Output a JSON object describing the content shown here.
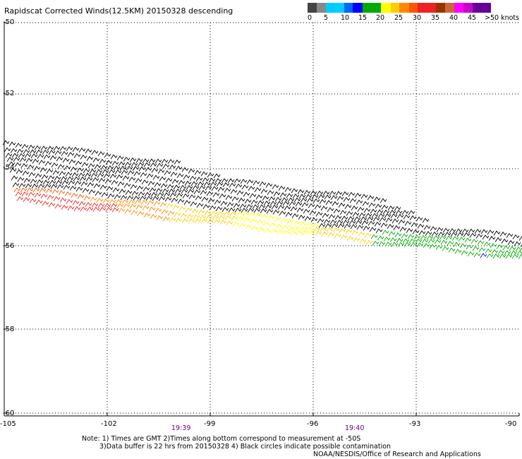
{
  "title": "Rapidscat Corrected Winds(12.5KM) 20150328 descending",
  "colorbar": {
    "colors": [
      "#444444",
      "#888888",
      "#00ccff",
      "#0066ff",
      "#0000ff",
      "#00aa00",
      "#ffff00",
      "#ffcc00",
      "#ff8800",
      "#ff5500",
      "#ee2222",
      "#993300",
      "#cc6633",
      "#ff00ff",
      "#cc00cc",
      "#660099"
    ],
    "labels": [
      "0",
      "5",
      "10",
      "15",
      "20",
      "25",
      "30",
      "35",
      "40",
      "45"
    ],
    "unit_label": ">50 knots"
  },
  "map": {
    "lon_ticks": [
      "-105",
      "-102",
      "-99",
      "-96",
      "-93",
      "-90"
    ],
    "lat_ticks": [
      "-50",
      "-52",
      "-54",
      "-56",
      "-58",
      "-60"
    ],
    "times": [
      "19:39",
      "19:40"
    ]
  },
  "notes": {
    "line1": "Note: 1) Times are GMT 2)Times along bottom correspond to measurement at -50S",
    "line2": "3)Data buffer is 22 hrs from 20150328 4) Black circles indicate possible contamination",
    "credit": "NOAA/NESDIS/Office of Research and Applications"
  }
}
